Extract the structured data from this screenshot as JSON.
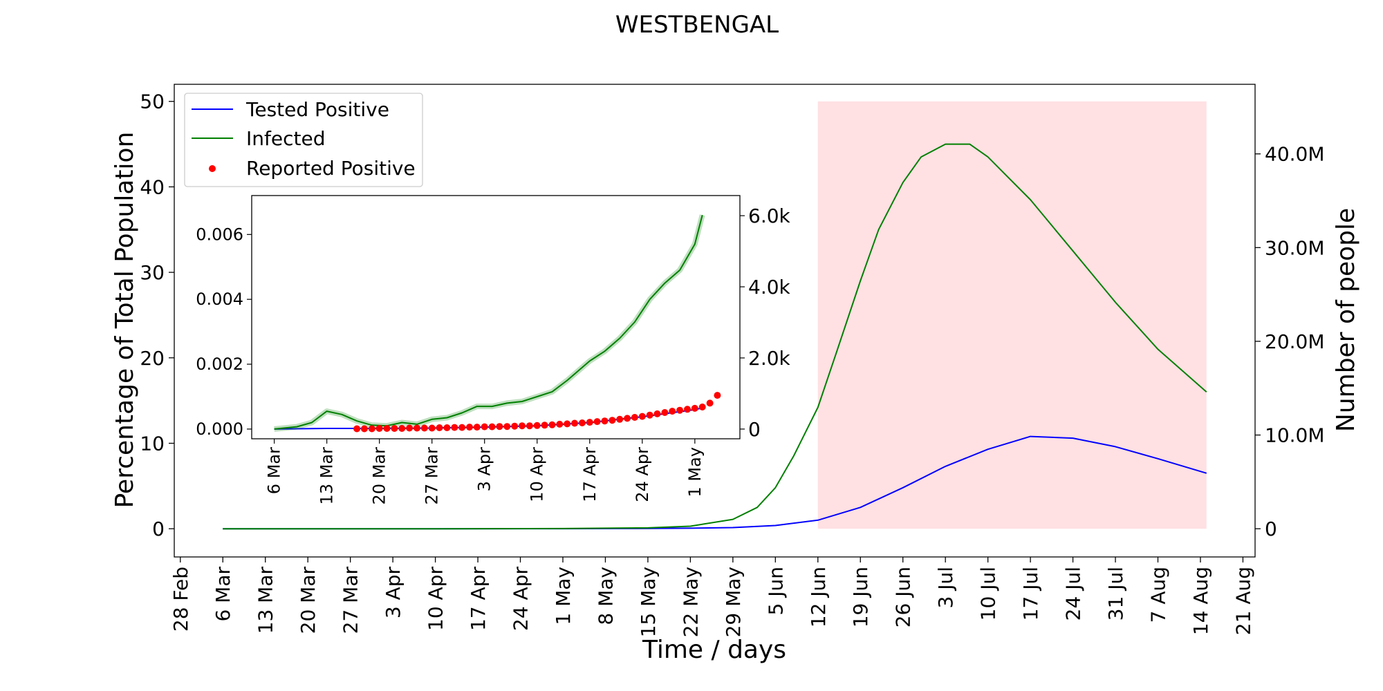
{
  "chart_data": {
    "type": "line",
    "title": "WESTBENGAL",
    "xlabel": "Time / days",
    "ylabel": "Percentage of Total Population",
    "ylabel_right": "Number of people",
    "x_domain": [
      "2020-02-27",
      "2020-08-23"
    ],
    "ylim": [
      -3.3,
      52
    ],
    "yticks": [
      0,
      10,
      20,
      30,
      40,
      50
    ],
    "yticks_right": [
      {
        "value": 0,
        "label": "0"
      },
      {
        "value": 10000000,
        "label": "10.0M"
      },
      {
        "value": 20000000,
        "label": "20.0M"
      },
      {
        "value": 30000000,
        "label": "30.0M"
      },
      {
        "value": 40000000,
        "label": "40.0M"
      }
    ],
    "population": 91200000,
    "xticks": [
      {
        "date": "2020-02-28",
        "label": "28 Feb"
      },
      {
        "date": "2020-03-06",
        "label": "6 Mar"
      },
      {
        "date": "2020-03-13",
        "label": "13 Mar"
      },
      {
        "date": "2020-03-20",
        "label": "20 Mar"
      },
      {
        "date": "2020-03-27",
        "label": "27 Mar"
      },
      {
        "date": "2020-04-03",
        "label": "3 Apr"
      },
      {
        "date": "2020-04-10",
        "label": "10 Apr"
      },
      {
        "date": "2020-04-17",
        "label": "17 Apr"
      },
      {
        "date": "2020-04-24",
        "label": "24 Apr"
      },
      {
        "date": "2020-05-01",
        "label": "1 May"
      },
      {
        "date": "2020-05-08",
        "label": "8 May"
      },
      {
        "date": "2020-05-15",
        "label": "15 May"
      },
      {
        "date": "2020-05-22",
        "label": "22 May"
      },
      {
        "date": "2020-05-29",
        "label": "29 May"
      },
      {
        "date": "2020-06-05",
        "label": "5 Jun"
      },
      {
        "date": "2020-06-12",
        "label": "12 Jun"
      },
      {
        "date": "2020-06-19",
        "label": "19 Jun"
      },
      {
        "date": "2020-06-26",
        "label": "26 Jun"
      },
      {
        "date": "2020-07-03",
        "label": "3 Jul"
      },
      {
        "date": "2020-07-10",
        "label": "10 Jul"
      },
      {
        "date": "2020-07-17",
        "label": "17 Jul"
      },
      {
        "date": "2020-07-24",
        "label": "24 Jul"
      },
      {
        "date": "2020-07-31",
        "label": "31 Jul"
      },
      {
        "date": "2020-08-07",
        "label": "7 Aug"
      },
      {
        "date": "2020-08-14",
        "label": "14 Aug"
      },
      {
        "date": "2020-08-21",
        "label": "21 Aug"
      }
    ],
    "shaded_region": {
      "x_start": "2020-06-12",
      "x_end": "2020-08-15",
      "y_range": [
        0,
        50
      ],
      "color": "#ffe0e3"
    },
    "legend": {
      "placement": "top-left"
    },
    "series": [
      {
        "name": "Tested Positive",
        "color": "#0000ff",
        "points": [
          [
            "2020-03-06",
            0
          ],
          [
            "2020-04-10",
            0
          ],
          [
            "2020-05-01",
            0.01
          ],
          [
            "2020-05-15",
            0.03
          ],
          [
            "2020-05-22",
            0.06
          ],
          [
            "2020-05-29",
            0.14
          ],
          [
            "2020-06-05",
            0.38
          ],
          [
            "2020-06-12",
            1.0
          ],
          [
            "2020-06-19",
            2.5
          ],
          [
            "2020-06-26",
            4.8
          ],
          [
            "2020-07-03",
            7.3
          ],
          [
            "2020-07-10",
            9.3
          ],
          [
            "2020-07-17",
            10.8
          ],
          [
            "2020-07-24",
            10.6
          ],
          [
            "2020-07-31",
            9.6
          ],
          [
            "2020-08-07",
            8.2
          ],
          [
            "2020-08-15",
            6.5
          ]
        ]
      },
      {
        "name": "Infected",
        "color": "#008000",
        "points": [
          [
            "2020-03-06",
            0
          ],
          [
            "2020-04-10",
            0
          ],
          [
            "2020-05-01",
            0.02
          ],
          [
            "2020-05-15",
            0.1
          ],
          [
            "2020-05-22",
            0.3
          ],
          [
            "2020-05-29",
            1.1
          ],
          [
            "2020-06-02",
            2.5
          ],
          [
            "2020-06-05",
            4.8
          ],
          [
            "2020-06-08",
            8.5
          ],
          [
            "2020-06-12",
            14.2
          ],
          [
            "2020-06-15",
            20.5
          ],
          [
            "2020-06-19",
            29.0
          ],
          [
            "2020-06-22",
            35.0
          ],
          [
            "2020-06-26",
            40.5
          ],
          [
            "2020-06-29",
            43.5
          ],
          [
            "2020-07-03",
            45.0
          ],
          [
            "2020-07-07",
            45.0
          ],
          [
            "2020-07-10",
            43.5
          ],
          [
            "2020-07-17",
            38.5
          ],
          [
            "2020-07-24",
            32.5
          ],
          [
            "2020-07-31",
            26.5
          ],
          [
            "2020-08-07",
            21.0
          ],
          [
            "2020-08-15",
            16.0
          ]
        ]
      }
    ],
    "inset": {
      "x_domain": [
        "2020-03-03",
        "2020-05-07"
      ],
      "ylim": [
        -0.0003,
        0.0072
      ],
      "yticks": [
        0.0,
        0.002,
        0.004,
        0.006
      ],
      "ytick_labels": [
        "0.000",
        "0.002",
        "0.004",
        "0.006"
      ],
      "yticks_right": [
        {
          "value": 0,
          "label": "0"
        },
        {
          "value": 2000,
          "label": "2.0k"
        },
        {
          "value": 4000,
          "label": "4.0k"
        },
        {
          "value": 6000,
          "label": "6.0k"
        }
      ],
      "xticks": [
        {
          "date": "2020-03-06",
          "label": "6 Mar"
        },
        {
          "date": "2020-03-13",
          "label": "13 Mar"
        },
        {
          "date": "2020-03-20",
          "label": "20 Mar"
        },
        {
          "date": "2020-03-27",
          "label": "27 Mar"
        },
        {
          "date": "2020-04-03",
          "label": "3 Apr"
        },
        {
          "date": "2020-04-10",
          "label": "10 Apr"
        },
        {
          "date": "2020-04-17",
          "label": "17 Apr"
        },
        {
          "date": "2020-04-24",
          "label": "24 Apr"
        },
        {
          "date": "2020-05-01",
          "label": "1 May"
        }
      ],
      "series": [
        {
          "name": "Tested Positive",
          "color": "#0000ff",
          "points": [
            [
              "2020-03-06",
              0.0
            ],
            [
              "2020-03-13",
              2e-05
            ],
            [
              "2020-03-20",
              2e-05
            ],
            [
              "2020-03-27",
              3e-05
            ],
            [
              "2020-04-03",
              6e-05
            ],
            [
              "2020-04-10",
              0.0001
            ],
            [
              "2020-04-17",
              0.0002
            ],
            [
              "2020-04-24",
              0.00038
            ],
            [
              "2020-05-01",
              0.0006
            ],
            [
              "2020-05-02",
              0.00065
            ]
          ]
        },
        {
          "name": "Infected",
          "color": "#008000",
          "points": [
            [
              "2020-03-06",
              0.0
            ],
            [
              "2020-03-09",
              7e-05
            ],
            [
              "2020-03-11",
              0.0002
            ],
            [
              "2020-03-13",
              0.00055
            ],
            [
              "2020-03-15",
              0.00045
            ],
            [
              "2020-03-17",
              0.00025
            ],
            [
              "2020-03-19",
              0.00012
            ],
            [
              "2020-03-21",
              0.0001
            ],
            [
              "2020-03-23",
              0.0002
            ],
            [
              "2020-03-25",
              0.00015
            ],
            [
              "2020-03-27",
              0.0003
            ],
            [
              "2020-03-29",
              0.00035
            ],
            [
              "2020-03-31",
              0.0005
            ],
            [
              "2020-04-02",
              0.0007
            ],
            [
              "2020-04-04",
              0.0007
            ],
            [
              "2020-04-06",
              0.0008
            ],
            [
              "2020-04-08",
              0.00085
            ],
            [
              "2020-04-10",
              0.001
            ],
            [
              "2020-04-12",
              0.00115
            ],
            [
              "2020-04-14",
              0.0015
            ],
            [
              "2020-04-17",
              0.0021
            ],
            [
              "2020-04-19",
              0.0024
            ],
            [
              "2020-04-21",
              0.0028
            ],
            [
              "2020-04-23",
              0.0033
            ],
            [
              "2020-04-25",
              0.004
            ],
            [
              "2020-04-27",
              0.0045
            ],
            [
              "2020-04-29",
              0.0049
            ],
            [
              "2020-05-01",
              0.0057
            ],
            [
              "2020-05-02",
              0.0066
            ]
          ]
        },
        {
          "name": "Reported Positive",
          "color": "#ff0000",
          "points": [
            [
              "2020-03-17",
              1e-05
            ],
            [
              "2020-03-18",
              1e-05
            ],
            [
              "2020-03-19",
              1e-05
            ],
            [
              "2020-03-20",
              2e-05
            ],
            [
              "2020-03-21",
              2e-05
            ],
            [
              "2020-03-22",
              2e-05
            ],
            [
              "2020-03-23",
              2e-05
            ],
            [
              "2020-03-24",
              3e-05
            ],
            [
              "2020-03-25",
              3e-05
            ],
            [
              "2020-03-26",
              3e-05
            ],
            [
              "2020-03-27",
              3e-05
            ],
            [
              "2020-03-28",
              4e-05
            ],
            [
              "2020-03-29",
              4e-05
            ],
            [
              "2020-03-30",
              5e-05
            ],
            [
              "2020-03-31",
              5e-05
            ],
            [
              "2020-04-01",
              6e-05
            ],
            [
              "2020-04-02",
              6e-05
            ],
            [
              "2020-04-03",
              7e-05
            ],
            [
              "2020-04-04",
              7e-05
            ],
            [
              "2020-04-05",
              8e-05
            ],
            [
              "2020-04-06",
              8e-05
            ],
            [
              "2020-04-07",
              9e-05
            ],
            [
              "2020-04-08",
              0.0001
            ],
            [
              "2020-04-09",
              0.0001
            ],
            [
              "2020-04-10",
              0.00011
            ],
            [
              "2020-04-11",
              0.00012
            ],
            [
              "2020-04-12",
              0.00013
            ],
            [
              "2020-04-13",
              0.00015
            ],
            [
              "2020-04-14",
              0.00016
            ],
            [
              "2020-04-15",
              0.00018
            ],
            [
              "2020-04-16",
              0.00019
            ],
            [
              "2020-04-17",
              0.00021
            ],
            [
              "2020-04-18",
              0.00023
            ],
            [
              "2020-04-19",
              0.00025
            ],
            [
              "2020-04-20",
              0.00027
            ],
            [
              "2020-04-21",
              0.0003
            ],
            [
              "2020-04-22",
              0.00033
            ],
            [
              "2020-04-23",
              0.00036
            ],
            [
              "2020-04-24",
              0.00039
            ],
            [
              "2020-04-25",
              0.00043
            ],
            [
              "2020-04-26",
              0.00047
            ],
            [
              "2020-04-27",
              0.00051
            ],
            [
              "2020-04-28",
              0.00055
            ],
            [
              "2020-04-29",
              0.00058
            ],
            [
              "2020-04-30",
              0.00061
            ],
            [
              "2020-05-01",
              0.00064
            ],
            [
              "2020-05-02",
              0.00068
            ],
            [
              "2020-05-03",
              0.0008
            ],
            [
              "2020-05-04",
              0.00104
            ]
          ]
        }
      ]
    }
  }
}
